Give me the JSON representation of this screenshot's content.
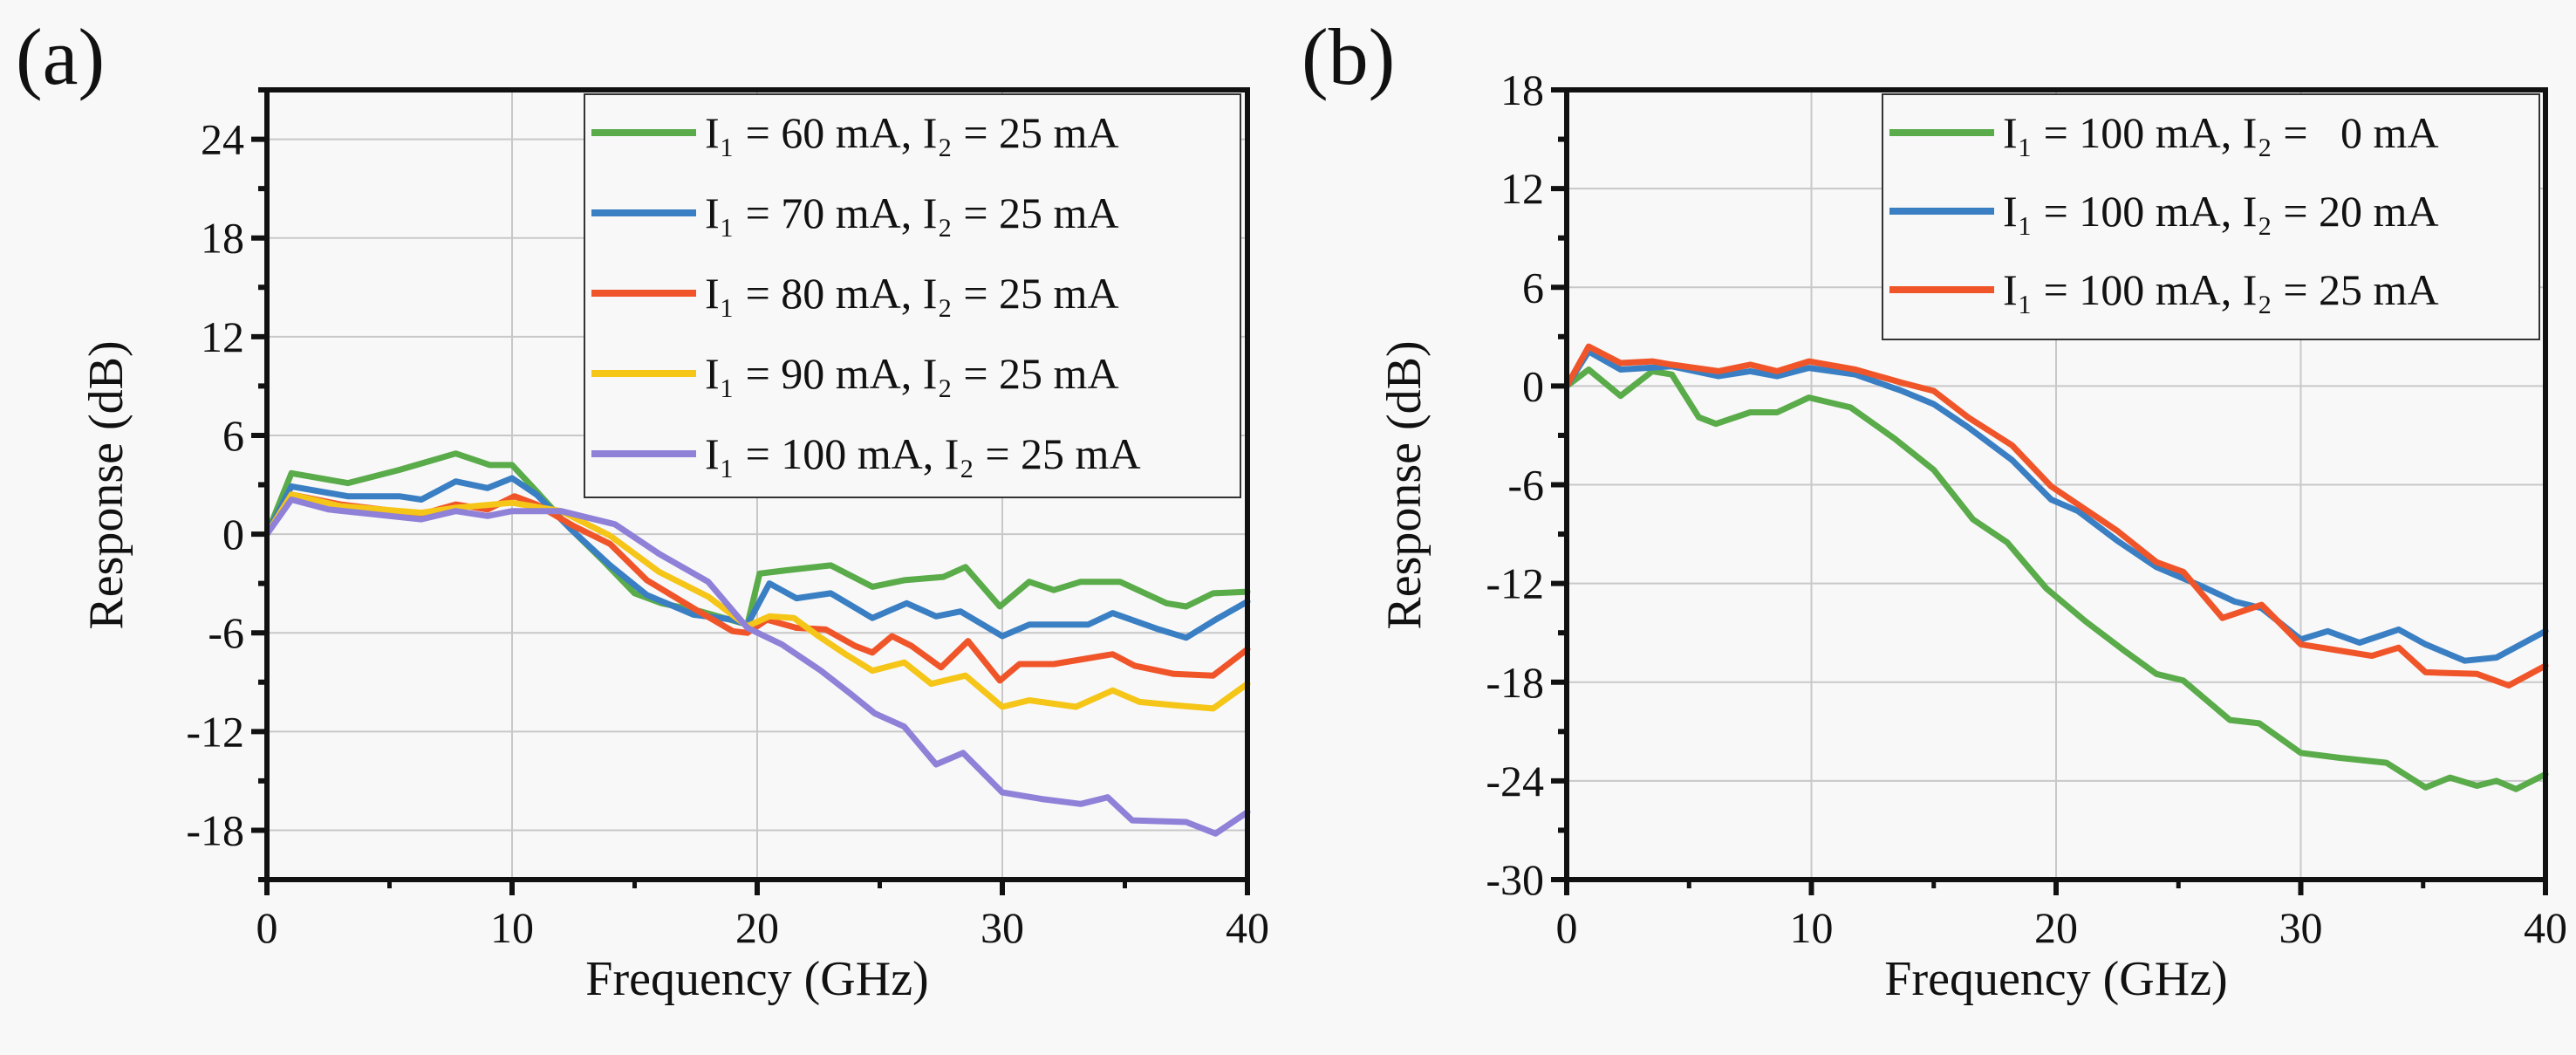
{
  "chart_data": [
    {
      "type": "line",
      "panel_label": "(a)",
      "xlabel": "Frequency (GHz)",
      "ylabel": "Response (dB)",
      "xlim": [
        0,
        40
      ],
      "ylim": [
        -21,
        27
      ],
      "xticks": [
        0,
        10,
        20,
        30,
        40
      ],
      "yticks": [
        -18,
        -12,
        -6,
        0,
        6,
        12,
        18,
        24
      ],
      "grid": true,
      "legend_position": "top-right",
      "series": [
        {
          "name": "I₁ = 60 mA, I₂ = 25 mA",
          "color": "#5aab4a",
          "x": [
            0,
            1,
            3.3,
            5.4,
            7.7,
            9.1,
            10,
            11,
            12.4,
            13.7,
            15,
            16.1,
            17.7,
            19.6,
            20.1,
            21.2,
            23,
            24.7,
            26,
            27.6,
            28.5,
            29.9,
            31.1,
            32.1,
            33.2,
            34.8,
            36.7,
            37.5,
            38.6,
            40
          ],
          "y": [
            0,
            3.7,
            3.1,
            3.9,
            4.9,
            4.2,
            4.2,
            2.6,
            0.3,
            -1.6,
            -3.6,
            -4.2,
            -4.7,
            -5.5,
            -2.4,
            -2.2,
            -1.9,
            -3.2,
            -2.8,
            -2.6,
            -2.0,
            -4.4,
            -2.9,
            -3.4,
            -2.9,
            -2.9,
            -4.2,
            -4.4,
            -3.6,
            -3.5
          ]
        },
        {
          "name": "I₁ = 70 mA, I₂ = 25 mA",
          "color": "#3a7fc3",
          "x": [
            0,
            1,
            3.3,
            5.4,
            6.3,
            7.7,
            9,
            10,
            11,
            12.4,
            14,
            15.5,
            17.4,
            19,
            19.6,
            20.5,
            21.6,
            23,
            24.7,
            26.1,
            27.3,
            28.3,
            30,
            31.1,
            33.5,
            34.5,
            36.4,
            37.5,
            38.7,
            40
          ],
          "y": [
            0,
            2.9,
            2.3,
            2.3,
            2.1,
            3.2,
            2.8,
            3.4,
            2.4,
            0.3,
            -1.9,
            -3.7,
            -4.9,
            -5.2,
            -5.5,
            -3.0,
            -3.9,
            -3.6,
            -5.1,
            -4.2,
            -5.0,
            -4.7,
            -6.2,
            -5.5,
            -5.5,
            -4.8,
            -5.8,
            -6.3,
            -5.2,
            -4.1
          ]
        },
        {
          "name": "I₁ = 80 mA, I₂ = 25 mA",
          "color": "#f0552a",
          "x": [
            0,
            1,
            3,
            6.3,
            7.7,
            9,
            10.1,
            11,
            12.5,
            14,
            15.5,
            17.5,
            19,
            19.6,
            20.4,
            21.6,
            22.8,
            24,
            24.7,
            25.5,
            26.3,
            27.5,
            28.6,
            29.9,
            30.7,
            32.1,
            34.5,
            35.4,
            37,
            38.6,
            40
          ],
          "y": [
            0,
            2.4,
            1.8,
            1.2,
            1.8,
            1.5,
            2.3,
            1.8,
            0.5,
            -0.6,
            -2.8,
            -4.6,
            -5.9,
            -6.0,
            -5.2,
            -5.7,
            -5.8,
            -6.8,
            -7.2,
            -6.2,
            -6.8,
            -8.1,
            -6.5,
            -8.9,
            -7.9,
            -7.9,
            -7.3,
            -8.0,
            -8.5,
            -8.6,
            -7.0
          ]
        },
        {
          "name": "I₁ = 90 mA, I₂ = 25 mA",
          "color": "#f5c518",
          "x": [
            0,
            1,
            3,
            6.3,
            7.7,
            10,
            12,
            14,
            16,
            18,
            19.6,
            20.5,
            21.5,
            22.5,
            23.6,
            24.7,
            26,
            27.1,
            28.5,
            30,
            31.1,
            33,
            34.5,
            35.6,
            37,
            38.6,
            40
          ],
          "y": [
            0,
            2.4,
            1.7,
            1.3,
            1.6,
            1.9,
            1.4,
            -0.1,
            -2.3,
            -3.8,
            -5.6,
            -5.0,
            -5.1,
            -6.2,
            -7.3,
            -8.3,
            -7.8,
            -9.1,
            -8.6,
            -10.5,
            -10.1,
            -10.5,
            -9.5,
            -10.2,
            -10.4,
            -10.6,
            -9.1
          ]
        },
        {
          "name": "I₁ = 100 mA, I₂ = 25 mA",
          "color": "#8f80d8",
          "x": [
            0,
            1,
            2.5,
            6.3,
            7.7,
            9,
            10,
            12,
            14.2,
            16,
            18,
            19.6,
            21,
            22.6,
            23.8,
            24.8,
            26,
            27.3,
            28.4,
            30,
            31.6,
            33.2,
            34.3,
            35.3,
            37.5,
            38.7,
            40
          ],
          "y": [
            0,
            2.1,
            1.5,
            0.9,
            1.4,
            1.1,
            1.4,
            1.4,
            0.6,
            -1.2,
            -2.9,
            -5.7,
            -6.7,
            -8.3,
            -9.7,
            -10.9,
            -11.7,
            -14.0,
            -13.3,
            -15.7,
            -16.1,
            -16.4,
            -16.0,
            -17.4,
            -17.5,
            -18.2,
            -16.9
          ]
        }
      ]
    },
    {
      "type": "line",
      "panel_label": "(b)",
      "xlabel": "Frequency (GHz)",
      "ylabel": "Response (dB)",
      "xlim": [
        0,
        40
      ],
      "ylim": [
        -30,
        18
      ],
      "xticks": [
        0,
        10,
        20,
        30,
        40
      ],
      "yticks": [
        -30,
        -24,
        -18,
        -12,
        -6,
        0,
        6,
        12,
        18
      ],
      "grid": true,
      "legend_position": "top-right",
      "series": [
        {
          "name": "I₁ = 100 mA, I₂ =   0 mA",
          "color": "#5aab4a",
          "x": [
            0,
            0.9,
            2.2,
            3.5,
            4.3,
            5.4,
            6.1,
            7.5,
            8.6,
            9.9,
            11.6,
            13.4,
            15,
            16.6,
            18,
            19.6,
            21.2,
            22.8,
            24.1,
            25.2,
            27.1,
            28.3,
            30,
            31.6,
            33.5,
            35.1,
            36.1,
            37.2,
            38,
            38.8,
            40
          ],
          "y": [
            0,
            1.0,
            -0.6,
            0.9,
            0.7,
            -1.9,
            -2.3,
            -1.6,
            -1.6,
            -0.7,
            -1.3,
            -3.2,
            -5.1,
            -8.1,
            -9.5,
            -12.3,
            -14.3,
            -16.1,
            -17.5,
            -17.9,
            -20.3,
            -20.5,
            -22.3,
            -22.6,
            -22.9,
            -24.4,
            -23.8,
            -24.3,
            -24.0,
            -24.5,
            -23.6
          ]
        },
        {
          "name": "I₁ = 100 mA, I₂ = 20 mA",
          "color": "#3a7fc3",
          "x": [
            0,
            0.9,
            2.2,
            4.3,
            6.2,
            7.5,
            8.6,
            9.9,
            11.8,
            13.7,
            15,
            16.4,
            18.2,
            19.8,
            20.9,
            22.5,
            24.1,
            26,
            27.3,
            28.4,
            30,
            31.1,
            32.4,
            34,
            35.1,
            36.7,
            38,
            40
          ],
          "y": [
            0,
            2.1,
            1.0,
            1.2,
            0.6,
            0.9,
            0.6,
            1.1,
            0.7,
            -0.3,
            -1.1,
            -2.5,
            -4.5,
            -6.9,
            -7.6,
            -9.4,
            -11.0,
            -12.2,
            -13.1,
            -13.5,
            -15.4,
            -14.9,
            -15.6,
            -14.8,
            -15.7,
            -16.7,
            -16.5,
            -14.9
          ]
        },
        {
          "name": "I₁ = 100 mA, I₂ = 25 mA",
          "color": "#f0552a",
          "x": [
            0,
            0.9,
            2.2,
            3.5,
            4.3,
            6.2,
            7.5,
            8.6,
            9.9,
            11.8,
            13.7,
            15,
            16.4,
            18.2,
            19.8,
            20.9,
            22.5,
            24.1,
            25.2,
            26.8,
            28.4,
            30,
            32.9,
            34,
            35.1,
            37.2,
            38.5,
            40
          ],
          "y": [
            0,
            2.4,
            1.4,
            1.5,
            1.3,
            0.9,
            1.3,
            0.9,
            1.5,
            1.0,
            0.2,
            -0.3,
            -1.9,
            -3.6,
            -6.1,
            -7.2,
            -8.8,
            -10.7,
            -11.3,
            -14.1,
            -13.3,
            -15.7,
            -16.4,
            -15.9,
            -17.4,
            -17.5,
            -18.2,
            -17.0
          ]
        }
      ]
    }
  ]
}
